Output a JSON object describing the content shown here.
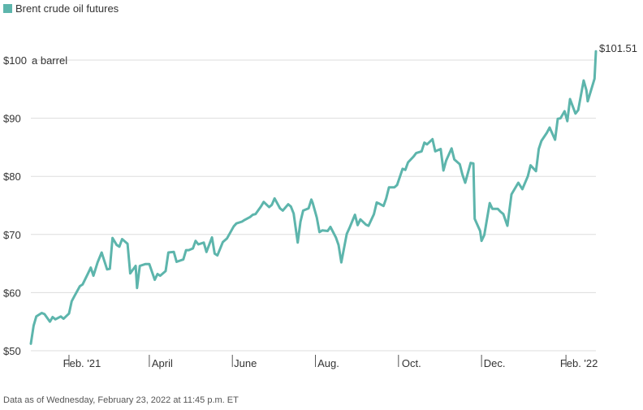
{
  "chart_data": {
    "type": "line",
    "legend": {
      "label": "Brent crude oil futures",
      "color": "#5db5ac",
      "placement": "top-left"
    },
    "y_unit_label": "a barrel",
    "ylim": [
      50,
      105
    ],
    "y_ticks": [
      {
        "value": 50,
        "label": "$50"
      },
      {
        "value": 60,
        "label": "$60"
      },
      {
        "value": 70,
        "label": "$70"
      },
      {
        "value": 80,
        "label": "$80"
      },
      {
        "value": 90,
        "label": "$90"
      },
      {
        "value": 100,
        "label": "$100"
      }
    ],
    "x_range": [
      "2021-01-04",
      "2022-02-23"
    ],
    "x_ticks": [
      {
        "date": "2021-02-01",
        "label": "Feb. '21"
      },
      {
        "date": "2021-04-01",
        "label": "April"
      },
      {
        "date": "2021-06-01",
        "label": "June"
      },
      {
        "date": "2021-08-01",
        "label": "Aug."
      },
      {
        "date": "2021-10-01",
        "label": "Oct."
      },
      {
        "date": "2021-12-01",
        "label": "Dec."
      },
      {
        "date": "2022-02-01",
        "label": "Feb. '22"
      }
    ],
    "grid": true,
    "end_label": "$101.51",
    "series": [
      {
        "color": "#5db5ac",
        "points": [
          [
            "2021-01-04",
            51.2
          ],
          [
            "2021-01-06",
            54.3
          ],
          [
            "2021-01-08",
            55.9
          ],
          [
            "2021-01-12",
            56.5
          ],
          [
            "2021-01-14",
            56.3
          ],
          [
            "2021-01-18",
            55.0
          ],
          [
            "2021-01-20",
            55.8
          ],
          [
            "2021-01-22",
            55.4
          ],
          [
            "2021-01-26",
            55.9
          ],
          [
            "2021-01-28",
            55.5
          ],
          [
            "2021-02-01",
            56.4
          ],
          [
            "2021-02-03",
            58.5
          ],
          [
            "2021-02-05",
            59.4
          ],
          [
            "2021-02-09",
            61.1
          ],
          [
            "2021-02-11",
            61.4
          ],
          [
            "2021-02-15",
            63.3
          ],
          [
            "2021-02-17",
            64.3
          ],
          [
            "2021-02-19",
            62.9
          ],
          [
            "2021-02-22",
            65.2
          ],
          [
            "2021-02-25",
            66.9
          ],
          [
            "2021-03-01",
            64.0
          ],
          [
            "2021-03-03",
            64.1
          ],
          [
            "2021-03-05",
            69.4
          ],
          [
            "2021-03-08",
            68.2
          ],
          [
            "2021-03-10",
            67.9
          ],
          [
            "2021-03-12",
            69.2
          ],
          [
            "2021-03-16",
            68.4
          ],
          [
            "2021-03-18",
            63.3
          ],
          [
            "2021-03-22",
            64.6
          ],
          [
            "2021-03-23",
            60.8
          ],
          [
            "2021-03-25",
            64.6
          ],
          [
            "2021-03-29",
            64.9
          ],
          [
            "2021-04-01",
            64.9
          ],
          [
            "2021-04-05",
            62.2
          ],
          [
            "2021-04-07",
            63.2
          ],
          [
            "2021-04-09",
            62.9
          ],
          [
            "2021-04-13",
            63.7
          ],
          [
            "2021-04-15",
            66.9
          ],
          [
            "2021-04-19",
            67.0
          ],
          [
            "2021-04-21",
            65.3
          ],
          [
            "2021-04-26",
            65.7
          ],
          [
            "2021-04-28",
            67.3
          ],
          [
            "2021-04-30",
            67.3
          ],
          [
            "2021-05-03",
            67.6
          ],
          [
            "2021-05-05",
            68.9
          ],
          [
            "2021-05-07",
            68.3
          ],
          [
            "2021-05-11",
            68.6
          ],
          [
            "2021-05-13",
            67.0
          ],
          [
            "2021-05-17",
            69.5
          ],
          [
            "2021-05-19",
            66.7
          ],
          [
            "2021-05-21",
            66.4
          ],
          [
            "2021-05-25",
            68.7
          ],
          [
            "2021-05-28",
            69.3
          ],
          [
            "2021-06-02",
            71.4
          ],
          [
            "2021-06-04",
            71.9
          ],
          [
            "2021-06-08",
            72.2
          ],
          [
            "2021-06-10",
            72.5
          ],
          [
            "2021-06-14",
            73.0
          ],
          [
            "2021-06-16",
            73.4
          ],
          [
            "2021-06-18",
            73.5
          ],
          [
            "2021-06-22",
            74.8
          ],
          [
            "2021-06-24",
            75.6
          ],
          [
            "2021-06-28",
            74.7
          ],
          [
            "2021-06-30",
            75.1
          ],
          [
            "2021-07-02",
            76.2
          ],
          [
            "2021-07-06",
            74.5
          ],
          [
            "2021-07-08",
            74.1
          ],
          [
            "2021-07-12",
            75.2
          ],
          [
            "2021-07-14",
            74.8
          ],
          [
            "2021-07-16",
            73.6
          ],
          [
            "2021-07-19",
            68.6
          ],
          [
            "2021-07-21",
            72.2
          ],
          [
            "2021-07-23",
            74.1
          ],
          [
            "2021-07-27",
            74.5
          ],
          [
            "2021-07-29",
            76.0
          ],
          [
            "2021-07-30",
            75.4
          ],
          [
            "2021-08-02",
            72.9
          ],
          [
            "2021-08-04",
            70.4
          ],
          [
            "2021-08-06",
            70.7
          ],
          [
            "2021-08-10",
            70.6
          ],
          [
            "2021-08-12",
            71.3
          ],
          [
            "2021-08-16",
            69.5
          ],
          [
            "2021-08-18",
            68.2
          ],
          [
            "2021-08-20",
            65.2
          ],
          [
            "2021-08-24",
            70.1
          ],
          [
            "2021-08-26",
            71.1
          ],
          [
            "2021-08-30",
            73.4
          ],
          [
            "2021-09-01",
            71.6
          ],
          [
            "2021-09-03",
            72.6
          ],
          [
            "2021-09-07",
            71.7
          ],
          [
            "2021-09-09",
            71.5
          ],
          [
            "2021-09-13",
            73.5
          ],
          [
            "2021-09-15",
            75.5
          ],
          [
            "2021-09-17",
            75.3
          ],
          [
            "2021-09-20",
            74.9
          ],
          [
            "2021-09-22",
            76.2
          ],
          [
            "2021-09-24",
            78.1
          ],
          [
            "2021-09-28",
            78.1
          ],
          [
            "2021-09-30",
            78.5
          ],
          [
            "2021-10-04",
            81.3
          ],
          [
            "2021-10-06",
            81.1
          ],
          [
            "2021-10-08",
            82.4
          ],
          [
            "2021-10-12",
            83.4
          ],
          [
            "2021-10-14",
            84.0
          ],
          [
            "2021-10-18",
            84.3
          ],
          [
            "2021-10-20",
            85.8
          ],
          [
            "2021-10-22",
            85.5
          ],
          [
            "2021-10-26",
            86.4
          ],
          [
            "2021-10-28",
            84.3
          ],
          [
            "2021-11-01",
            84.7
          ],
          [
            "2021-11-03",
            81.0
          ],
          [
            "2021-11-05",
            82.7
          ],
          [
            "2021-11-09",
            84.8
          ],
          [
            "2021-11-11",
            82.9
          ],
          [
            "2021-11-15",
            82.1
          ],
          [
            "2021-11-17",
            80.3
          ],
          [
            "2021-11-19",
            78.9
          ],
          [
            "2021-11-23",
            82.3
          ],
          [
            "2021-11-25",
            82.2
          ],
          [
            "2021-11-26",
            72.7
          ],
          [
            "2021-11-30",
            70.6
          ],
          [
            "2021-12-01",
            68.9
          ],
          [
            "2021-12-03",
            69.9
          ],
          [
            "2021-12-07",
            75.4
          ],
          [
            "2021-12-09",
            74.4
          ],
          [
            "2021-12-13",
            74.4
          ],
          [
            "2021-12-15",
            73.9
          ],
          [
            "2021-12-17",
            73.5
          ],
          [
            "2021-12-20",
            71.5
          ],
          [
            "2021-12-23",
            76.9
          ],
          [
            "2021-12-28",
            78.9
          ],
          [
            "2021-12-31",
            77.8
          ],
          [
            "2022-01-04",
            80.0
          ],
          [
            "2022-01-06",
            81.9
          ],
          [
            "2022-01-10",
            80.9
          ],
          [
            "2022-01-12",
            84.7
          ],
          [
            "2022-01-14",
            86.1
          ],
          [
            "2022-01-18",
            87.5
          ],
          [
            "2022-01-20",
            88.4
          ],
          [
            "2022-01-24",
            86.3
          ],
          [
            "2022-01-26",
            89.9
          ],
          [
            "2022-01-28",
            90.0
          ],
          [
            "2022-01-31",
            91.2
          ],
          [
            "2022-02-02",
            89.5
          ],
          [
            "2022-02-04",
            93.3
          ],
          [
            "2022-02-08",
            90.8
          ],
          [
            "2022-02-10",
            91.4
          ],
          [
            "2022-02-14",
            96.5
          ],
          [
            "2022-02-16",
            94.8
          ],
          [
            "2022-02-17",
            92.9
          ],
          [
            "2022-02-22",
            96.8
          ],
          [
            "2022-02-23",
            101.51
          ]
        ]
      }
    ]
  },
  "footnote": "Data as of Wednesday, February 23, 2022 at 11:45 p.m. ET"
}
